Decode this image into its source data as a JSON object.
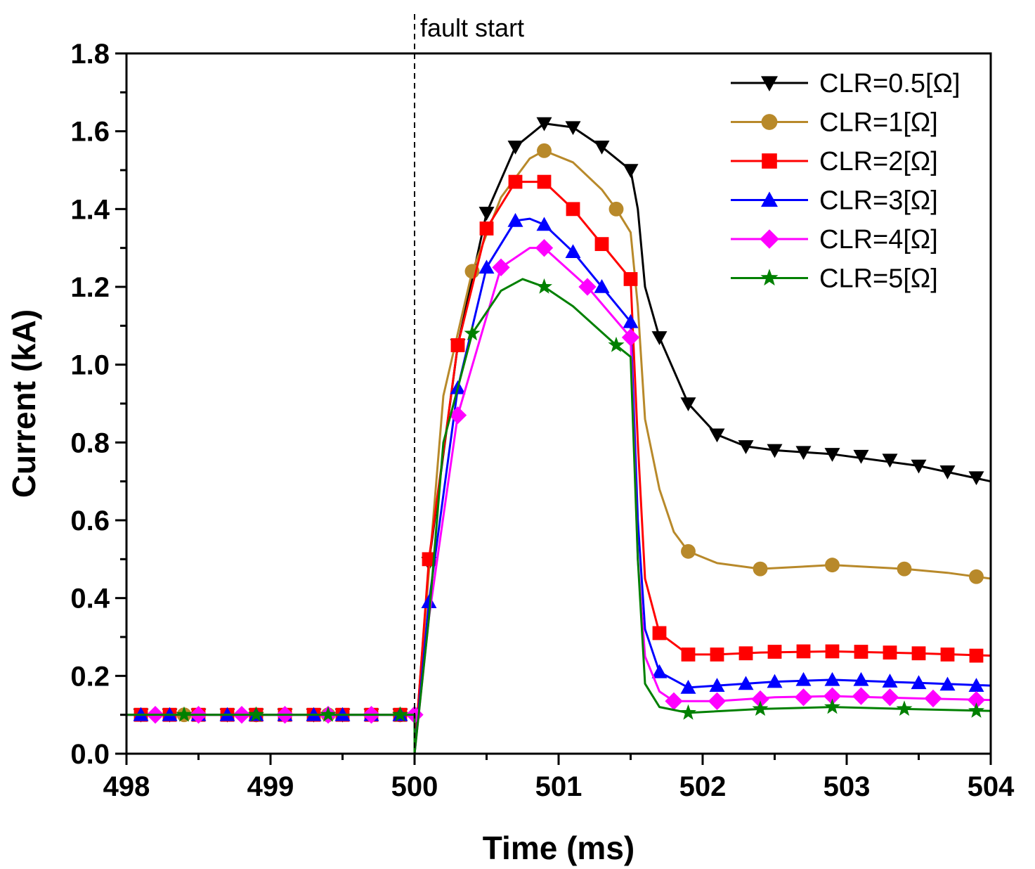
{
  "chart_data": {
    "type": "line",
    "xlabel": "Time (ms)",
    "ylabel": "Current (kA)",
    "xlim": [
      498,
      504
    ],
    "ylim": [
      0,
      1.8
    ],
    "x_ticks": [
      "498",
      "499",
      "500",
      "501",
      "502",
      "503",
      "504"
    ],
    "y_ticks": [
      "0.0",
      "0.2",
      "0.4",
      "0.6",
      "0.8",
      "1.0",
      "1.2",
      "1.4",
      "1.6",
      "1.8"
    ],
    "grid": false,
    "legend_position": "top-right",
    "annotations": [
      {
        "text": "fault start",
        "x": 500
      }
    ],
    "series": [
      {
        "name": "CLR=0.5[Ω]",
        "color": "#000000",
        "marker": "triangle-down",
        "line": [
          [
            498,
            0.1
          ],
          [
            500,
            0.1
          ],
          [
            500,
            0
          ],
          [
            500.1,
            0.49
          ],
          [
            500.3,
            1.05
          ],
          [
            500.5,
            1.39
          ],
          [
            500.7,
            1.56
          ],
          [
            500.9,
            1.62
          ],
          [
            501.1,
            1.61
          ],
          [
            501.3,
            1.56
          ],
          [
            501.5,
            1.5
          ],
          [
            501.55,
            1.4
          ],
          [
            501.6,
            1.2
          ],
          [
            501.7,
            1.07
          ],
          [
            501.9,
            0.9
          ],
          [
            502.1,
            0.82
          ],
          [
            502.3,
            0.79
          ],
          [
            502.5,
            0.78
          ],
          [
            502.9,
            0.77
          ],
          [
            503.5,
            0.74
          ],
          [
            504,
            0.7
          ]
        ],
        "markers": [
          [
            500.1,
            0.49
          ],
          [
            500.3,
            1.05
          ],
          [
            500.5,
            1.39
          ],
          [
            500.7,
            1.56
          ],
          [
            500.9,
            1.62
          ],
          [
            501.1,
            1.61
          ],
          [
            501.3,
            1.56
          ],
          [
            501.5,
            1.5
          ],
          [
            501.7,
            1.07
          ],
          [
            501.9,
            0.9
          ],
          [
            502.1,
            0.82
          ],
          [
            502.3,
            0.79
          ],
          [
            502.5,
            0.78
          ],
          [
            502.7,
            0.775
          ],
          [
            502.9,
            0.77
          ],
          [
            503.1,
            0.765
          ],
          [
            503.3,
            0.755
          ],
          [
            503.5,
            0.74
          ],
          [
            503.7,
            0.725
          ],
          [
            503.9,
            0.71
          ]
        ]
      },
      {
        "name": "CLR=1[Ω]",
        "color": "#b8892a",
        "marker": "circle",
        "line": [
          [
            498,
            0.1
          ],
          [
            500,
            0.1
          ],
          [
            500,
            0
          ],
          [
            500.1,
            0.47
          ],
          [
            500.2,
            0.92
          ],
          [
            500.4,
            1.24
          ],
          [
            500.6,
            1.43
          ],
          [
            500.8,
            1.53
          ],
          [
            500.9,
            1.55
          ],
          [
            501.1,
            1.52
          ],
          [
            501.3,
            1.45
          ],
          [
            501.4,
            1.4
          ],
          [
            501.5,
            1.34
          ],
          [
            501.55,
            1.15
          ],
          [
            501.6,
            0.86
          ],
          [
            501.7,
            0.68
          ],
          [
            501.8,
            0.57
          ],
          [
            501.9,
            0.52
          ],
          [
            502.1,
            0.49
          ],
          [
            502.4,
            0.475
          ],
          [
            502.9,
            0.485
          ],
          [
            503.4,
            0.475
          ],
          [
            503.7,
            0.465
          ],
          [
            504,
            0.45
          ]
        ],
        "markers": [
          [
            500.4,
            1.24
          ],
          [
            500.9,
            1.55
          ],
          [
            501.4,
            1.4
          ],
          [
            501.9,
            0.52
          ],
          [
            502.4,
            0.475
          ],
          [
            502.9,
            0.485
          ],
          [
            503.4,
            0.475
          ],
          [
            503.9,
            0.455
          ]
        ]
      },
      {
        "name": "CLR=2[Ω]",
        "color": "#ff0000",
        "marker": "square",
        "line": [
          [
            498,
            0.1
          ],
          [
            500,
            0.1
          ],
          [
            500,
            0
          ],
          [
            500.1,
            0.5
          ],
          [
            500.3,
            1.05
          ],
          [
            500.5,
            1.35
          ],
          [
            500.7,
            1.47
          ],
          [
            500.9,
            1.47
          ],
          [
            501.1,
            1.4
          ],
          [
            501.3,
            1.31
          ],
          [
            501.5,
            1.22
          ],
          [
            501.55,
            0.8
          ],
          [
            501.6,
            0.45
          ],
          [
            501.7,
            0.31
          ],
          [
            501.9,
            0.255
          ],
          [
            502.1,
            0.255
          ],
          [
            502.4,
            0.26
          ],
          [
            502.9,
            0.263
          ],
          [
            503.5,
            0.258
          ],
          [
            504,
            0.252
          ]
        ],
        "markers": [
          [
            500.1,
            0.5
          ],
          [
            500.3,
            1.05
          ],
          [
            500.5,
            1.35
          ],
          [
            500.7,
            1.47
          ],
          [
            500.9,
            1.47
          ],
          [
            501.1,
            1.4
          ],
          [
            501.3,
            1.31
          ],
          [
            501.5,
            1.22
          ],
          [
            501.7,
            0.31
          ],
          [
            501.9,
            0.255
          ],
          [
            502.1,
            0.255
          ],
          [
            502.3,
            0.258
          ],
          [
            502.5,
            0.262
          ],
          [
            502.7,
            0.263
          ],
          [
            502.9,
            0.263
          ],
          [
            503.1,
            0.262
          ],
          [
            503.3,
            0.26
          ],
          [
            503.5,
            0.258
          ],
          [
            503.7,
            0.255
          ],
          [
            503.9,
            0.252
          ]
        ]
      },
      {
        "name": "CLR=3[Ω]",
        "color": "#0000ff",
        "marker": "triangle-up",
        "line": [
          [
            498,
            0.1
          ],
          [
            500,
            0.1
          ],
          [
            500,
            0
          ],
          [
            500.1,
            0.39
          ],
          [
            500.3,
            0.94
          ],
          [
            500.5,
            1.25
          ],
          [
            500.7,
            1.37
          ],
          [
            500.8,
            1.375
          ],
          [
            500.9,
            1.36
          ],
          [
            501.1,
            1.29
          ],
          [
            501.3,
            1.2
          ],
          [
            501.5,
            1.11
          ],
          [
            501.55,
            0.6
          ],
          [
            501.6,
            0.32
          ],
          [
            501.7,
            0.21
          ],
          [
            501.9,
            0.17
          ],
          [
            502.1,
            0.175
          ],
          [
            502.5,
            0.185
          ],
          [
            502.9,
            0.19
          ],
          [
            503.5,
            0.182
          ],
          [
            504,
            0.175
          ]
        ],
        "markers": [
          [
            500.1,
            0.39
          ],
          [
            500.3,
            0.94
          ],
          [
            500.5,
            1.25
          ],
          [
            500.7,
            1.37
          ],
          [
            500.9,
            1.36
          ],
          [
            501.1,
            1.29
          ],
          [
            501.3,
            1.2
          ],
          [
            501.5,
            1.11
          ],
          [
            501.7,
            0.21
          ],
          [
            501.9,
            0.17
          ],
          [
            502.1,
            0.175
          ],
          [
            502.3,
            0.18
          ],
          [
            502.5,
            0.185
          ],
          [
            502.7,
            0.19
          ],
          [
            502.9,
            0.19
          ],
          [
            503.1,
            0.19
          ],
          [
            503.3,
            0.186
          ],
          [
            503.5,
            0.182
          ],
          [
            503.7,
            0.178
          ],
          [
            503.9,
            0.175
          ]
        ]
      },
      {
        "name": "CLR=4[Ω]",
        "color": "#ff00ff",
        "marker": "diamond",
        "line": [
          [
            498,
            0.1
          ],
          [
            500,
            0.1
          ],
          [
            500,
            0
          ],
          [
            500.1,
            0.35
          ],
          [
            500.3,
            0.87
          ],
          [
            500.6,
            1.25
          ],
          [
            500.8,
            1.3
          ],
          [
            500.9,
            1.3
          ],
          [
            501.2,
            1.2
          ],
          [
            501.5,
            1.07
          ],
          [
            501.55,
            0.5
          ],
          [
            501.6,
            0.25
          ],
          [
            501.7,
            0.16
          ],
          [
            501.8,
            0.135
          ],
          [
            502.1,
            0.135
          ],
          [
            502.5,
            0.145
          ],
          [
            502.9,
            0.148
          ],
          [
            503.5,
            0.142
          ],
          [
            504,
            0.138
          ]
        ],
        "markers": [
          [
            500.3,
            0.87
          ],
          [
            500.6,
            1.25
          ],
          [
            500.9,
            1.3
          ],
          [
            501.2,
            1.2
          ],
          [
            501.5,
            1.07
          ],
          [
            501.8,
            0.135
          ],
          [
            502.1,
            0.135
          ],
          [
            502.4,
            0.14
          ],
          [
            502.7,
            0.145
          ],
          [
            502.9,
            0.148
          ],
          [
            503.1,
            0.148
          ],
          [
            503.3,
            0.145
          ],
          [
            503.6,
            0.142
          ],
          [
            503.9,
            0.138
          ]
        ]
      },
      {
        "name": "CLR=5[Ω]",
        "color": "#008000",
        "marker": "star",
        "line": [
          [
            498,
            0.1
          ],
          [
            500,
            0.1
          ],
          [
            500,
            0
          ],
          [
            500.1,
            0.35
          ],
          [
            500.2,
            0.8
          ],
          [
            500.4,
            1.08
          ],
          [
            500.6,
            1.19
          ],
          [
            500.75,
            1.22
          ],
          [
            500.9,
            1.2
          ],
          [
            501.1,
            1.15
          ],
          [
            501.4,
            1.05
          ],
          [
            501.5,
            1.02
          ],
          [
            501.55,
            0.5
          ],
          [
            501.6,
            0.18
          ],
          [
            501.7,
            0.12
          ],
          [
            501.9,
            0.105
          ],
          [
            502.4,
            0.115
          ],
          [
            502.9,
            0.12
          ],
          [
            503.4,
            0.115
          ],
          [
            504,
            0.11
          ]
        ],
        "markers": [
          [
            500.4,
            1.08
          ],
          [
            500.9,
            1.2
          ],
          [
            501.4,
            1.05
          ],
          [
            501.9,
            0.105
          ],
          [
            502.4,
            0.115
          ],
          [
            502.9,
            0.12
          ],
          [
            503.4,
            0.115
          ],
          [
            503.9,
            0.11
          ]
        ]
      }
    ],
    "pre_fault_markers": {
      "CLR=0.5[Ω]": [
        498.1,
        498.3,
        498.5,
        498.7,
        498.9,
        499.1,
        499.3,
        499.5,
        499.7,
        499.9
      ],
      "CLR=1[Ω]": [
        498.4,
        498.9,
        499.4,
        499.9
      ],
      "CLR=2[Ω]": [
        498.1,
        498.3,
        498.5,
        498.7,
        498.9,
        499.1,
        499.3,
        499.5,
        499.7,
        499.9
      ],
      "CLR=3[Ω]": [
        498.1,
        498.3,
        498.5,
        498.7,
        498.9,
        499.1,
        499.3,
        499.5,
        499.7,
        499.9
      ],
      "CLR=4[Ω]": [
        498.2,
        498.5,
        498.8,
        499.1,
        499.4,
        499.7,
        500.0
      ],
      "CLR=5[Ω]": [
        498.4,
        498.9,
        499.4,
        499.9
      ]
    }
  }
}
